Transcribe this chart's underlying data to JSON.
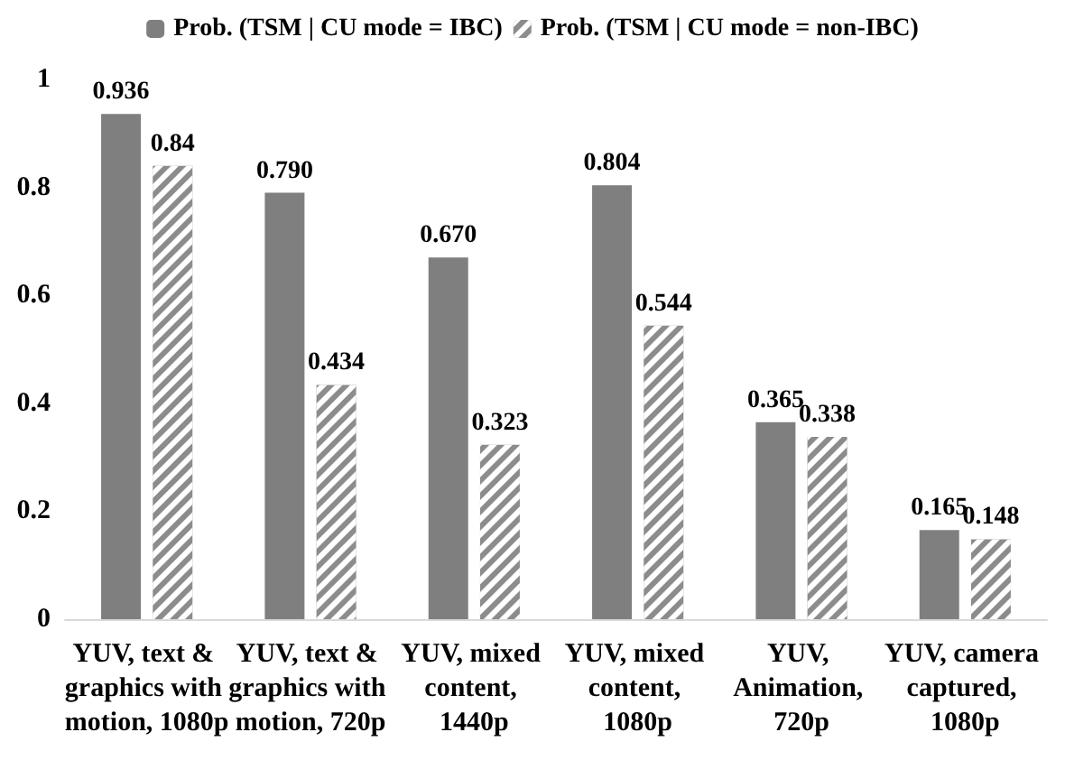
{
  "chart_data": {
    "type": "bar",
    "categories": [
      "YUV, text & graphics with motion, 1080p",
      "YUV, text & graphics with motion, 720p",
      "YUV, mixed content, 1440p",
      "YUV, mixed content, 1080p",
      "YUV, Animation, 720p",
      "YUV, camera captured, 1080p"
    ],
    "series": [
      {
        "name": "Prob. (TSM | CU mode = IBC)",
        "color": "#7f7f7f",
        "values": [
          0.936,
          0.79,
          0.67,
          0.804,
          0.365,
          0.165
        ],
        "value_labels": [
          "0.936",
          "0.790",
          "0.670",
          "0.804",
          "0.365",
          "0.165"
        ]
      },
      {
        "name": "Prob. (TSM | CU mode = non-IBC)",
        "color": "#8c8c8c",
        "values": [
          0.84,
          0.434,
          0.323,
          0.544,
          0.338,
          0.148
        ],
        "value_labels": [
          "0.84",
          "0.434",
          "0.323",
          "0.544",
          "0.338",
          "0.148"
        ]
      }
    ],
    "ylim": [
      0,
      1
    ],
    "yticks": [
      0,
      0.2,
      0.4,
      0.6,
      0.8,
      1
    ],
    "grid": false,
    "legend": "top"
  }
}
